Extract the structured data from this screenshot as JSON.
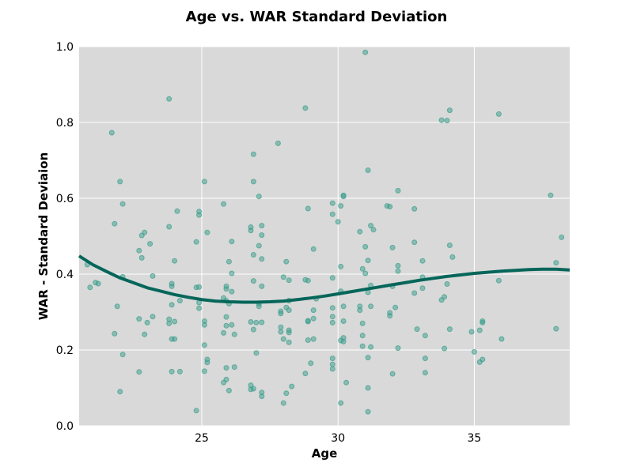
{
  "chart_data": {
    "type": "scatter",
    "title": "Age vs. WAR Standard Deviation",
    "xlabel": "Age",
    "ylabel": "WAR - Standard Deviaion",
    "xlim": [
      20.5,
      38.5
    ],
    "ylim": [
      0.0,
      1.0
    ],
    "xticks": [
      25,
      30,
      35
    ],
    "xtick_labels": [
      "25",
      "30",
      "35"
    ],
    "yticks": [
      0.0,
      0.2,
      0.4,
      0.6,
      0.8,
      1.0
    ],
    "ytick_labels": [
      "0.0",
      "0.2",
      "0.4",
      "0.6",
      "0.8",
      "1.0"
    ],
    "grid": true,
    "background": "#d9d9d9",
    "point_color": "#3a9e8c",
    "line_color": "#05665a",
    "points": [
      [
        20.8,
        0.425
      ],
      [
        20.9,
        0.365
      ],
      [
        21.1,
        0.378
      ],
      [
        21.2,
        0.375
      ],
      [
        21.7,
        0.773
      ],
      [
        21.8,
        0.533
      ],
      [
        21.9,
        0.315
      ],
      [
        21.8,
        0.243
      ],
      [
        22.0,
        0.09
      ],
      [
        22.0,
        0.644
      ],
      [
        22.1,
        0.585
      ],
      [
        22.1,
        0.393
      ],
      [
        22.1,
        0.188
      ],
      [
        22.7,
        0.462
      ],
      [
        22.7,
        0.282
      ],
      [
        22.8,
        0.443
      ],
      [
        22.8,
        0.502
      ],
      [
        22.9,
        0.51
      ],
      [
        22.9,
        0.241
      ],
      [
        22.7,
        0.142
      ],
      [
        23.0,
        0.272
      ],
      [
        23.1,
        0.48
      ],
      [
        23.2,
        0.395
      ],
      [
        23.2,
        0.288
      ],
      [
        23.8,
        0.862
      ],
      [
        23.8,
        0.525
      ],
      [
        23.9,
        0.375
      ],
      [
        23.9,
        0.368
      ],
      [
        23.9,
        0.319
      ],
      [
        23.8,
        0.281
      ],
      [
        23.8,
        0.27
      ],
      [
        23.9,
        0.229
      ],
      [
        23.9,
        0.143
      ],
      [
        24.0,
        0.435
      ],
      [
        24.0,
        0.275
      ],
      [
        24.0,
        0.229
      ],
      [
        24.1,
        0.566
      ],
      [
        24.2,
        0.33
      ],
      [
        24.2,
        0.143
      ],
      [
        24.8,
        0.485
      ],
      [
        24.8,
        0.365
      ],
      [
        24.9,
        0.366
      ],
      [
        24.9,
        0.325
      ],
      [
        24.9,
        0.31
      ],
      [
        24.8,
        0.04
      ],
      [
        24.9,
        0.556
      ],
      [
        24.9,
        0.565
      ],
      [
        25.1,
        0.644
      ],
      [
        25.1,
        0.276
      ],
      [
        25.1,
        0.266
      ],
      [
        25.1,
        0.213
      ],
      [
        25.2,
        0.175
      ],
      [
        25.2,
        0.167
      ],
      [
        25.1,
        0.144
      ],
      [
        25.2,
        0.51
      ],
      [
        25.8,
        0.585
      ],
      [
        25.8,
        0.337
      ],
      [
        25.8,
        0.245
      ],
      [
        25.8,
        0.114
      ],
      [
        25.9,
        0.368
      ],
      [
        25.9,
        0.361
      ],
      [
        25.9,
        0.33
      ],
      [
        25.9,
        0.287
      ],
      [
        25.9,
        0.264
      ],
      [
        25.9,
        0.153
      ],
      [
        25.9,
        0.122
      ],
      [
        26.0,
        0.433
      ],
      [
        26.0,
        0.322
      ],
      [
        26.0,
        0.093
      ],
      [
        26.1,
        0.486
      ],
      [
        26.1,
        0.402
      ],
      [
        26.1,
        0.354
      ],
      [
        26.1,
        0.266
      ],
      [
        26.2,
        0.241
      ],
      [
        26.2,
        0.155
      ],
      [
        26.8,
        0.524
      ],
      [
        26.8,
        0.515
      ],
      [
        26.8,
        0.274
      ],
      [
        26.8,
        0.107
      ],
      [
        26.8,
        0.096
      ],
      [
        26.9,
        0.716
      ],
      [
        26.9,
        0.644
      ],
      [
        26.9,
        0.451
      ],
      [
        26.9,
        0.382
      ],
      [
        26.9,
        0.254
      ],
      [
        26.9,
        0.098
      ],
      [
        27.0,
        0.192
      ],
      [
        27.0,
        0.272
      ],
      [
        27.1,
        0.605
      ],
      [
        27.1,
        0.475
      ],
      [
        27.1,
        0.315
      ],
      [
        27.1,
        0.322
      ],
      [
        27.2,
        0.528
      ],
      [
        27.2,
        0.503
      ],
      [
        27.2,
        0.44
      ],
      [
        27.2,
        0.368
      ],
      [
        27.2,
        0.088
      ],
      [
        27.2,
        0.078
      ],
      [
        27.2,
        0.273
      ],
      [
        27.8,
        0.745
      ],
      [
        27.9,
        0.26
      ],
      [
        27.9,
        0.248
      ],
      [
        27.9,
        0.302
      ],
      [
        27.9,
        0.296
      ],
      [
        28.0,
        0.392
      ],
      [
        28.0,
        0.229
      ],
      [
        28.0,
        0.06
      ],
      [
        28.1,
        0.433
      ],
      [
        28.1,
        0.312
      ],
      [
        28.1,
        0.086
      ],
      [
        28.2,
        0.384
      ],
      [
        28.2,
        0.33
      ],
      [
        28.2,
        0.305
      ],
      [
        28.2,
        0.252
      ],
      [
        28.2,
        0.246
      ],
      [
        28.2,
        0.22
      ],
      [
        28.3,
        0.104
      ],
      [
        28.8,
        0.838
      ],
      [
        28.8,
        0.385
      ],
      [
        28.8,
        0.138
      ],
      [
        28.9,
        0.573
      ],
      [
        28.9,
        0.383
      ],
      [
        28.9,
        0.277
      ],
      [
        28.9,
        0.275
      ],
      [
        28.9,
        0.226
      ],
      [
        29.0,
        0.165
      ],
      [
        29.1,
        0.466
      ],
      [
        29.1,
        0.305
      ],
      [
        29.1,
        0.283
      ],
      [
        29.1,
        0.229
      ],
      [
        29.2,
        0.335
      ],
      [
        29.8,
        0.587
      ],
      [
        29.8,
        0.558
      ],
      [
        29.8,
        0.39
      ],
      [
        29.8,
        0.311
      ],
      [
        29.8,
        0.288
      ],
      [
        29.8,
        0.272
      ],
      [
        29.8,
        0.178
      ],
      [
        29.8,
        0.162
      ],
      [
        29.8,
        0.15
      ],
      [
        30.0,
        0.538
      ],
      [
        30.1,
        0.58
      ],
      [
        30.1,
        0.42
      ],
      [
        30.1,
        0.355
      ],
      [
        30.1,
        0.225
      ],
      [
        30.1,
        0.06
      ],
      [
        30.2,
        0.605
      ],
      [
        30.2,
        0.608
      ],
      [
        30.2,
        0.315
      ],
      [
        30.2,
        0.276
      ],
      [
        30.2,
        0.232
      ],
      [
        30.2,
        0.222
      ],
      [
        30.3,
        0.114
      ],
      [
        30.8,
        0.512
      ],
      [
        30.8,
        0.315
      ],
      [
        30.8,
        0.305
      ],
      [
        30.9,
        0.414
      ],
      [
        30.9,
        0.27
      ],
      [
        30.9,
        0.238
      ],
      [
        30.9,
        0.21
      ],
      [
        31.0,
        0.985
      ],
      [
        31.0,
        0.472
      ],
      [
        31.0,
        0.402
      ],
      [
        31.1,
        0.674
      ],
      [
        31.1,
        0.436
      ],
      [
        31.1,
        0.352
      ],
      [
        31.1,
        0.18
      ],
      [
        31.1,
        0.1
      ],
      [
        31.1,
        0.037
      ],
      [
        31.2,
        0.528
      ],
      [
        31.2,
        0.37
      ],
      [
        31.2,
        0.315
      ],
      [
        31.2,
        0.208
      ],
      [
        31.3,
        0.517
      ],
      [
        31.8,
        0.58
      ],
      [
        31.9,
        0.578
      ],
      [
        31.9,
        0.29
      ],
      [
        31.9,
        0.298
      ],
      [
        32.0,
        0.47
      ],
      [
        32.0,
        0.368
      ],
      [
        32.1,
        0.312
      ],
      [
        32.0,
        0.137
      ],
      [
        32.2,
        0.62
      ],
      [
        32.2,
        0.422
      ],
      [
        32.2,
        0.408
      ],
      [
        32.2,
        0.205
      ],
      [
        32.8,
        0.572
      ],
      [
        32.8,
        0.484
      ],
      [
        32.8,
        0.35
      ],
      [
        32.9,
        0.255
      ],
      [
        33.1,
        0.392
      ],
      [
        33.1,
        0.363
      ],
      [
        33.1,
        0.435
      ],
      [
        33.2,
        0.238
      ],
      [
        33.2,
        0.178
      ],
      [
        33.2,
        0.14
      ],
      [
        33.8,
        0.806
      ],
      [
        33.8,
        0.332
      ],
      [
        33.9,
        0.34
      ],
      [
        33.9,
        0.204
      ],
      [
        34.0,
        0.805
      ],
      [
        34.0,
        0.374
      ],
      [
        34.1,
        0.832
      ],
      [
        34.1,
        0.476
      ],
      [
        34.1,
        0.255
      ],
      [
        34.2,
        0.445
      ],
      [
        34.9,
        0.248
      ],
      [
        35.0,
        0.195
      ],
      [
        35.2,
        0.252
      ],
      [
        35.2,
        0.168
      ],
      [
        35.3,
        0.276
      ],
      [
        35.3,
        0.272
      ],
      [
        35.3,
        0.175
      ],
      [
        35.9,
        0.822
      ],
      [
        35.9,
        0.383
      ],
      [
        36.0,
        0.229
      ],
      [
        37.8,
        0.608
      ],
      [
        38.0,
        0.43
      ],
      [
        38.0,
        0.256
      ],
      [
        38.2,
        0.497
      ]
    ],
    "trend_line": [
      [
        20.5,
        0.448
      ],
      [
        21.0,
        0.425
      ],
      [
        21.5,
        0.407
      ],
      [
        22.0,
        0.39
      ],
      [
        22.5,
        0.377
      ],
      [
        23.0,
        0.364
      ],
      [
        23.5,
        0.355
      ],
      [
        24.0,
        0.346
      ],
      [
        24.5,
        0.339
      ],
      [
        25.0,
        0.333
      ],
      [
        25.5,
        0.329
      ],
      [
        26.0,
        0.327
      ],
      [
        26.5,
        0.326
      ],
      [
        27.0,
        0.326
      ],
      [
        27.5,
        0.327
      ],
      [
        28.0,
        0.329
      ],
      [
        28.5,
        0.333
      ],
      [
        29.0,
        0.337
      ],
      [
        29.5,
        0.342
      ],
      [
        30.0,
        0.348
      ],
      [
        30.5,
        0.354
      ],
      [
        31.0,
        0.36
      ],
      [
        31.5,
        0.366
      ],
      [
        32.0,
        0.372
      ],
      [
        32.5,
        0.378
      ],
      [
        33.0,
        0.384
      ],
      [
        33.5,
        0.389
      ],
      [
        34.0,
        0.394
      ],
      [
        34.5,
        0.398
      ],
      [
        35.0,
        0.402
      ],
      [
        35.5,
        0.405
      ],
      [
        36.0,
        0.408
      ],
      [
        36.5,
        0.41
      ],
      [
        37.0,
        0.412
      ],
      [
        37.5,
        0.413
      ],
      [
        38.0,
        0.413
      ],
      [
        38.5,
        0.411
      ]
    ]
  }
}
